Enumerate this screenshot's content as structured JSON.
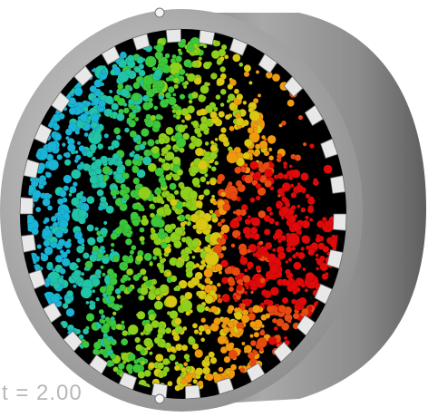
{
  "scene": {
    "subject": "rotating-drum-particle-simulation",
    "drum_shell_color": "#9a9a9a",
    "drum_rim_color": "#c4c4c4",
    "drum_interior_color": "#000000",
    "particle_palette": [
      "#1ab4d6",
      "#22c4a8",
      "#3cc83a",
      "#8ed01c",
      "#d8c814",
      "#f09a10",
      "#e84a10",
      "#e00a0a"
    ],
    "particle_fill_fraction": 0.8
  },
  "time_readout": {
    "text": "t = 2.00"
  }
}
